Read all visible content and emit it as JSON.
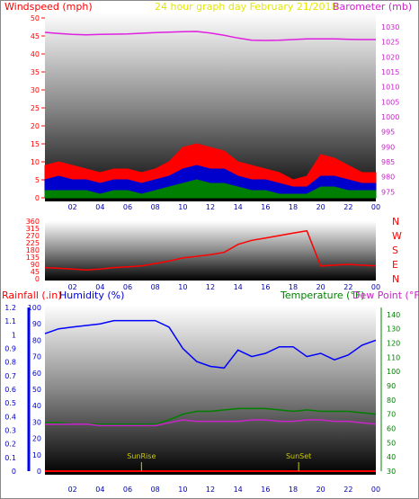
{
  "header": {
    "left": "Windspeed (mph)",
    "center": "24 hour graph day   February 21/2018",
    "right": "Barometer (mb)"
  },
  "colors": {
    "wind_gust": "#ff0000",
    "wind_avg": "#0000cc",
    "wind_low": "#008000",
    "barometer": "#e020e0",
    "direction": "#ff0000",
    "humidity": "#0000ff",
    "temperature": "#008000",
    "dewpoint": "#cc22cc",
    "rain": "#ff0000",
    "rain_axis": "#0000ff",
    "temp_axis": "#008000",
    "sun_marker": "#cccc00"
  },
  "x_ticks": [
    "02",
    "04",
    "06",
    "08",
    "10",
    "12",
    "14",
    "16",
    "18",
    "20",
    "22",
    "00"
  ],
  "chart_data": [
    {
      "type": "line",
      "title": "",
      "y_left": {
        "label": "Windspeed (mph)",
        "ticks": [
          0,
          5,
          10,
          15,
          20,
          25,
          30,
          35,
          40,
          45,
          50
        ],
        "lim": [
          0,
          50
        ]
      },
      "y_right": {
        "label": "Barometer (mb)",
        "ticks": [
          975,
          980,
          985,
          990,
          995,
          1000,
          1005,
          1010,
          1015,
          1020,
          1025,
          1030
        ],
        "lim": [
          973,
          1033
        ]
      },
      "x": [
        0,
        1,
        2,
        3,
        4,
        5,
        6,
        7,
        8,
        9,
        10,
        11,
        12,
        13,
        14,
        15,
        16,
        17,
        18,
        19,
        20,
        21,
        22,
        23,
        24
      ],
      "series": [
        {
          "name": "Windspeed gust",
          "values": [
            9,
            10,
            9,
            8,
            7,
            8,
            8,
            7,
            8,
            10,
            14,
            15,
            14,
            13,
            10,
            9,
            8,
            7,
            5,
            6,
            12,
            11,
            9,
            7,
            7
          ]
        },
        {
          "name": "Windspeed avg",
          "values": [
            5,
            6,
            5,
            5,
            4,
            5,
            5,
            4,
            5,
            6,
            8,
            9,
            8,
            8,
            6,
            5,
            5,
            4,
            3,
            3,
            6,
            6,
            5,
            4,
            4
          ]
        },
        {
          "name": "Windspeed low",
          "values": [
            2,
            2,
            2,
            2,
            1,
            2,
            2,
            1,
            2,
            3,
            4,
            5,
            4,
            4,
            3,
            2,
            2,
            1,
            1,
            1,
            3,
            3,
            2,
            2,
            2
          ]
        },
        {
          "name": "Barometer",
          "values": [
            1028.2,
            1027.8,
            1027.5,
            1027.4,
            1027.5,
            1027.6,
            1027.7,
            1027.9,
            1028.1,
            1028.3,
            1028.4,
            1028.5,
            1028.0,
            1027.2,
            1026.3,
            1025.6,
            1025.5,
            1025.6,
            1025.8,
            1026.0,
            1026.0,
            1026.0,
            1025.9,
            1025.8,
            1025.8
          ]
        }
      ]
    },
    {
      "type": "line",
      "title": "",
      "y_left": {
        "ticks": [
          0,
          45,
          90,
          135,
          180,
          225,
          270,
          315,
          360
        ],
        "lim": [
          0,
          360
        ]
      },
      "y_right": {
        "labels": [
          "N",
          "W",
          "S",
          "E",
          "N"
        ]
      },
      "x": [
        0,
        1,
        2,
        3,
        4,
        5,
        6,
        7,
        8,
        9,
        10,
        11,
        12,
        13,
        14,
        15,
        16,
        17,
        18,
        19,
        20,
        21,
        22,
        23,
        24
      ],
      "series": [
        {
          "name": "Wind direction",
          "values": [
            70,
            65,
            60,
            55,
            60,
            70,
            75,
            80,
            95,
            110,
            130,
            140,
            150,
            165,
            215,
            240,
            255,
            270,
            285,
            300,
            80,
            85,
            90,
            85,
            80
          ]
        }
      ]
    },
    {
      "type": "line",
      "title": "",
      "y_left": {
        "label": "Rainfall (.in)",
        "ticks": [
          0,
          0.1,
          0.2,
          0.3,
          0.4,
          0.5,
          0.6,
          0.7,
          0.8,
          0.9,
          1,
          1.1,
          1.2
        ],
        "lim": [
          0,
          1.2
        ]
      },
      "y_left2": {
        "label": "Humidity (%)",
        "ticks": [
          0,
          10,
          20,
          30,
          40,
          50,
          60,
          70,
          80,
          90,
          100
        ],
        "lim": [
          0,
          100
        ]
      },
      "y_right": {
        "label": "Temperature (°F)",
        "ticks": [
          30,
          40,
          50,
          60,
          70,
          80,
          90,
          100,
          110,
          120,
          130,
          140
        ],
        "lim": [
          30,
          145
        ]
      },
      "y_right2": {
        "label": "Dew Point (°F)"
      },
      "annotations": [
        "SunRise",
        "SunSet"
      ],
      "annotation_x": [
        7.0,
        18.4
      ],
      "x": [
        0,
        1,
        2,
        3,
        4,
        5,
        6,
        7,
        8,
        9,
        10,
        11,
        12,
        13,
        14,
        15,
        16,
        17,
        18,
        19,
        20,
        21,
        22,
        23,
        24
      ],
      "series": [
        {
          "name": "Humidity",
          "values": [
            84,
            87,
            88,
            89,
            90,
            92,
            92,
            92,
            92,
            88,
            75,
            67,
            64,
            63,
            74,
            70,
            72,
            76,
            76,
            70,
            72,
            68,
            71,
            77,
            80
          ]
        },
        {
          "name": "Temperature",
          "values": [
            64,
            64,
            63,
            63,
            63,
            63,
            63,
            63,
            63,
            66,
            70,
            72,
            72,
            73,
            74,
            74,
            74,
            73,
            72,
            73,
            72,
            72,
            72,
            71,
            70
          ]
        },
        {
          "name": "Dew Point",
          "values": [
            63,
            63,
            63,
            63,
            62,
            62,
            62,
            62,
            62,
            64,
            66,
            65,
            65,
            65,
            65,
            66,
            66,
            65,
            65,
            66,
            66,
            65,
            65,
            64,
            63
          ]
        },
        {
          "name": "Rainfall",
          "values": [
            0,
            0,
            0,
            0,
            0,
            0,
            0,
            0,
            0,
            0,
            0,
            0,
            0,
            0,
            0,
            0,
            0,
            0,
            0,
            0,
            0,
            0,
            0,
            0,
            0
          ]
        }
      ]
    }
  ]
}
